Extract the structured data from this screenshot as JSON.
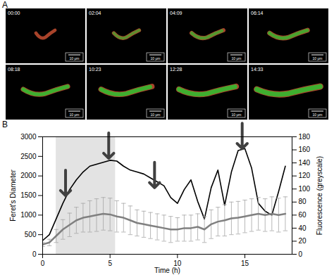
{
  "panel_labels": [
    "A",
    "B"
  ],
  "panel_a": {
    "frames": [
      "00:00",
      "02:04",
      "04:09",
      "06:14",
      "08:18",
      "10:23",
      "12:28",
      "14:33"
    ],
    "scale_bar": "10 μm"
  },
  "chart_data": {
    "type": "line",
    "x_label": "Time (h)",
    "y_label": "Feret's Diameter",
    "y2_label": "Fluorescence (greyscale)",
    "x": [
      0,
      0.5,
      1,
      1.5,
      2,
      2.5,
      3,
      3.5,
      4,
      4.5,
      5,
      5.5,
      6,
      6.5,
      7,
      7.5,
      8,
      8.5,
      9,
      9.5,
      10,
      10.5,
      11,
      11.5,
      12,
      12.5,
      13,
      13.5,
      14,
      14.5,
      15,
      15.5,
      16,
      16.5,
      17,
      17.5,
      18
    ],
    "series": [
      {
        "color": "#000000",
        "values": [
          350,
          500,
          900,
          1300,
          1650,
          1900,
          2100,
          2250,
          2300,
          2350,
          2400,
          2380,
          2250,
          2150,
          2100,
          2050,
          1950,
          1850,
          1750,
          1450,
          1300,
          1650,
          1900,
          1350,
          900,
          1700,
          2150,
          1250,
          2100,
          2650,
          2700,
          2200,
          1300,
          1100,
          1000,
          1600,
          2250
        ]
      },
      {
        "color": "#808080",
        "axis": "y2",
        "values": [
          15,
          18,
          28,
          38,
          45,
          52,
          56,
          58,
          60,
          62,
          61,
          58,
          56,
          52,
          48,
          46,
          44,
          42,
          40,
          38,
          38,
          40,
          40,
          42,
          38,
          46,
          50,
          52,
          55,
          56,
          58,
          60,
          62,
          60,
          62,
          60,
          62
        ],
        "errors": [
          3,
          5,
          10,
          15,
          18,
          20,
          22,
          24,
          25,
          25,
          25,
          24,
          22,
          22,
          20,
          20,
          20,
          20,
          20,
          20,
          18,
          20,
          20,
          20,
          20,
          22,
          22,
          24,
          25,
          25,
          25,
          25,
          25,
          25,
          26,
          26,
          26
        ]
      }
    ],
    "shaded_region": [
      1.0,
      5.4
    ],
    "arrows": [
      {
        "x": 1.7,
        "y": 1500
      },
      {
        "x": 4.9,
        "y": 2450
      },
      {
        "x": 8.3,
        "y": 1700
      },
      {
        "x": 14.8,
        "y": 2700
      }
    ],
    "xlim": [
      0,
      18.5
    ],
    "xticks": [
      0,
      5,
      10,
      15
    ],
    "ylim": [
      0,
      3000
    ],
    "yticks": [
      0,
      500,
      1000,
      1500,
      2000,
      2500,
      3000
    ],
    "y2lim": [
      0,
      180
    ],
    "y2ticks": [
      0,
      20,
      40,
      60,
      80,
      100,
      120,
      140,
      160,
      180
    ]
  }
}
